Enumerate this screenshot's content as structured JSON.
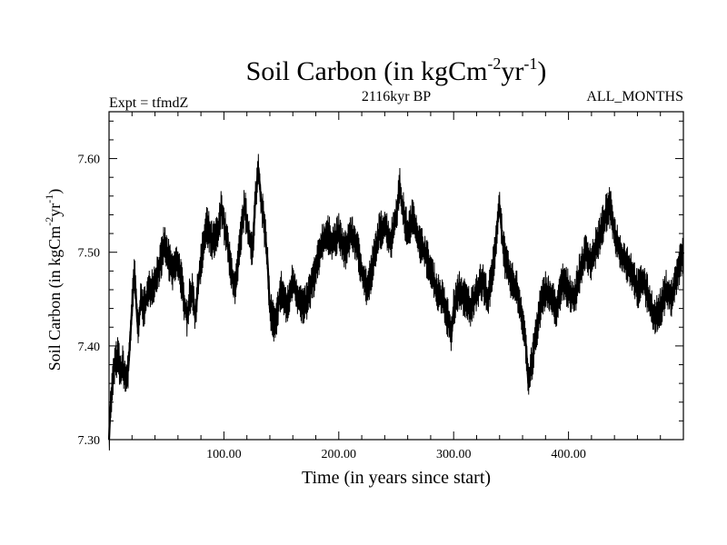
{
  "chart_data": {
    "type": "line",
    "title": {
      "main": "Soil Carbon (in kgCm",
      "sup1": "-2",
      "mid": "yr",
      "sup2": "-1",
      "end": ")"
    },
    "header": {
      "left": "Expt = tfmdZ",
      "center": "2116kyr BP",
      "right": "ALL_MONTHS"
    },
    "xlabel": "Time (in years since start)",
    "ylabel": {
      "main": "Soil Carbon (in kgCm",
      "sup1": "-2",
      "mid": "yr",
      "sup2": "-1",
      "end": ")"
    },
    "xlim": [
      0,
      500
    ],
    "ylim": [
      7.3,
      7.65
    ],
    "xticks": [
      {
        "value": 100,
        "label": "100.00"
      },
      {
        "value": 200,
        "label": "200.00"
      },
      {
        "value": 300,
        "label": "300.00"
      },
      {
        "value": 400,
        "label": "400.00"
      }
    ],
    "yticks": [
      {
        "value": 7.3,
        "label": "7.30"
      },
      {
        "value": 7.4,
        "label": "7.40"
      },
      {
        "value": 7.5,
        "label": "7.50"
      },
      {
        "value": 7.6,
        "label": "7.60"
      }
    ],
    "series": [
      {
        "name": "Soil Carbon",
        "x": [
          0,
          1,
          3,
          5,
          8,
          10,
          12,
          15,
          17,
          20,
          22,
          25,
          28,
          30,
          35,
          40,
          45,
          48,
          50,
          55,
          60,
          63,
          65,
          68,
          70,
          73,
          75,
          78,
          80,
          85,
          90,
          95,
          98,
          100,
          103,
          105,
          108,
          110,
          115,
          118,
          120,
          125,
          127,
          130,
          132,
          135,
          138,
          140,
          145,
          148,
          150,
          155,
          160,
          165,
          170,
          175,
          180,
          185,
          190,
          195,
          200,
          205,
          210,
          215,
          220,
          225,
          230,
          235,
          240,
          245,
          250,
          253,
          255,
          260,
          265,
          270,
          275,
          280,
          285,
          290,
          295,
          298,
          300,
          305,
          310,
          315,
          320,
          325,
          330,
          335,
          338,
          340,
          342,
          345,
          350,
          355,
          360,
          363,
          365,
          368,
          370,
          375,
          380,
          385,
          390,
          395,
          400,
          405,
          410,
          415,
          420,
          425,
          430,
          435,
          438,
          440,
          445,
          450,
          455,
          460,
          465,
          470,
          475,
          480,
          485,
          490,
          495,
          500
        ],
        "y": [
          7.3,
          7.33,
          7.36,
          7.38,
          7.39,
          7.37,
          7.38,
          7.36,
          7.38,
          7.44,
          7.48,
          7.42,
          7.45,
          7.44,
          7.46,
          7.47,
          7.49,
          7.51,
          7.5,
          7.48,
          7.49,
          7.47,
          7.45,
          7.43,
          7.45,
          7.46,
          7.43,
          7.47,
          7.49,
          7.53,
          7.51,
          7.52,
          7.55,
          7.53,
          7.51,
          7.49,
          7.47,
          7.46,
          7.52,
          7.55,
          7.53,
          7.5,
          7.55,
          7.59,
          7.56,
          7.53,
          7.49,
          7.44,
          7.42,
          7.45,
          7.46,
          7.44,
          7.47,
          7.45,
          7.44,
          7.46,
          7.48,
          7.51,
          7.52,
          7.51,
          7.52,
          7.5,
          7.52,
          7.51,
          7.48,
          7.46,
          7.49,
          7.52,
          7.53,
          7.51,
          7.54,
          7.57,
          7.55,
          7.52,
          7.54,
          7.51,
          7.5,
          7.48,
          7.46,
          7.45,
          7.43,
          7.41,
          7.44,
          7.46,
          7.45,
          7.44,
          7.46,
          7.47,
          7.45,
          7.49,
          7.53,
          7.55,
          7.52,
          7.49,
          7.47,
          7.46,
          7.43,
          7.4,
          7.36,
          7.38,
          7.4,
          7.44,
          7.46,
          7.45,
          7.44,
          7.47,
          7.46,
          7.45,
          7.48,
          7.5,
          7.49,
          7.51,
          7.53,
          7.55,
          7.54,
          7.52,
          7.5,
          7.49,
          7.48,
          7.46,
          7.47,
          7.45,
          7.43,
          7.44,
          7.46,
          7.45,
          7.48,
          7.5
        ]
      }
    ]
  }
}
